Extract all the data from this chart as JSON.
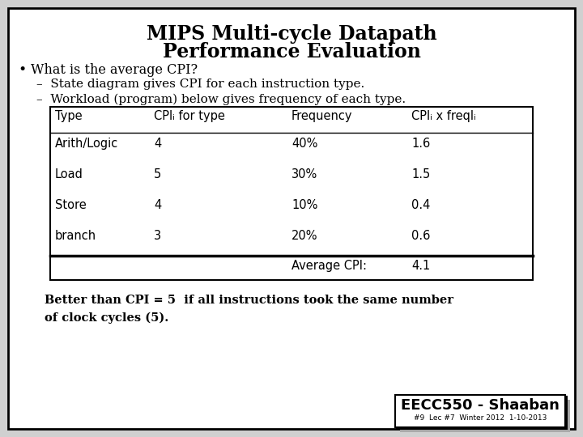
{
  "title_line1": "MIPS Multi-cycle Datapath",
  "title_line2": "Performance Evaluation",
  "bullet": "What is the average CPI?",
  "sub1": "State diagram gives CPI for each instruction type.",
  "sub2": "Workload (program) below gives frequency of each type.",
  "table_headers": [
    "Type",
    "CPIᵢ for type",
    "Frequency",
    "CPIᵢ x freqlᵢ"
  ],
  "table_rows": [
    [
      "Arith/Logic",
      "4",
      "40%",
      "1.6"
    ],
    [
      "Load",
      "5",
      "30%",
      "1.5"
    ],
    [
      "Store",
      "4",
      "10%",
      "0.4"
    ],
    [
      "branch",
      "3",
      "20%",
      "0.6"
    ]
  ],
  "avg_label": "Average CPI:",
  "avg_value": "4.1",
  "footer_line1": "Better than CPI = 5  if all instructions took the same number",
  "footer_line2": "of clock cycles (5).",
  "stamp": "EECC550 - Shaaban",
  "stamp_sub": "#9  Lec #7  Winter 2012  1-10-2013",
  "bg_color": "#d0d0d0",
  "slide_bg": "#ffffff",
  "border_color": "#000000",
  "title_fontsize": 17,
  "body_fontsize": 11.5,
  "table_fontsize": 10.5,
  "footer_fontsize": 10.5,
  "stamp_fontsize": 13
}
